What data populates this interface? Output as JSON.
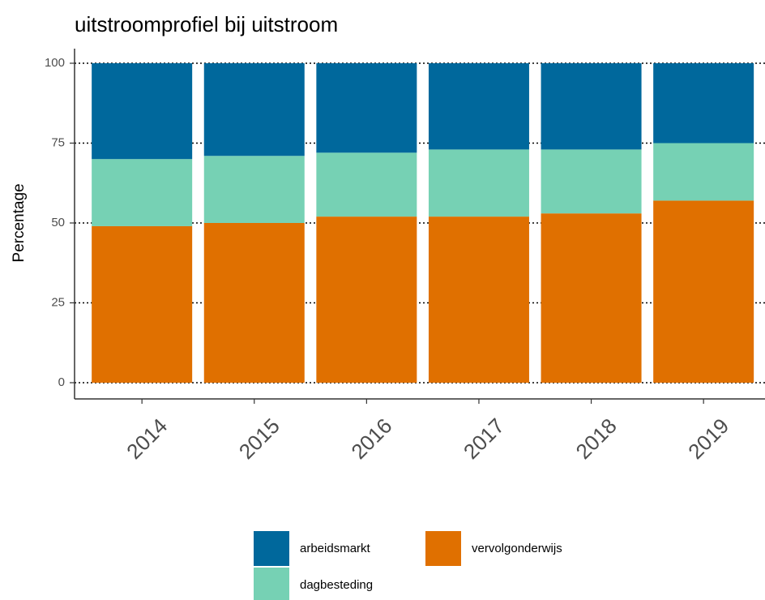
{
  "chart_data": {
    "type": "stacked_bar",
    "title": "uitstroomprofiel bij uitstroom",
    "y_label": "Percentage",
    "categories": [
      "2014",
      "2015",
      "2016",
      "2017",
      "2018",
      "2019"
    ],
    "series": [
      {
        "name": "arbeidsmarkt",
        "color": "#00689c",
        "values": [
          30,
          29,
          28,
          27,
          27,
          25
        ]
      },
      {
        "name": "dagbesteding",
        "color": "#76d1b4",
        "values": [
          21,
          21,
          20,
          21,
          20,
          18
        ]
      },
      {
        "name": "vervolgonderwijs",
        "color": "#e07000",
        "values": [
          49,
          50,
          52,
          52,
          53,
          57
        ]
      }
    ],
    "ylim": [
      0,
      100
    ],
    "yticks": [
      0,
      25,
      50,
      75,
      100
    ],
    "grid": true,
    "legend": "bottom"
  }
}
